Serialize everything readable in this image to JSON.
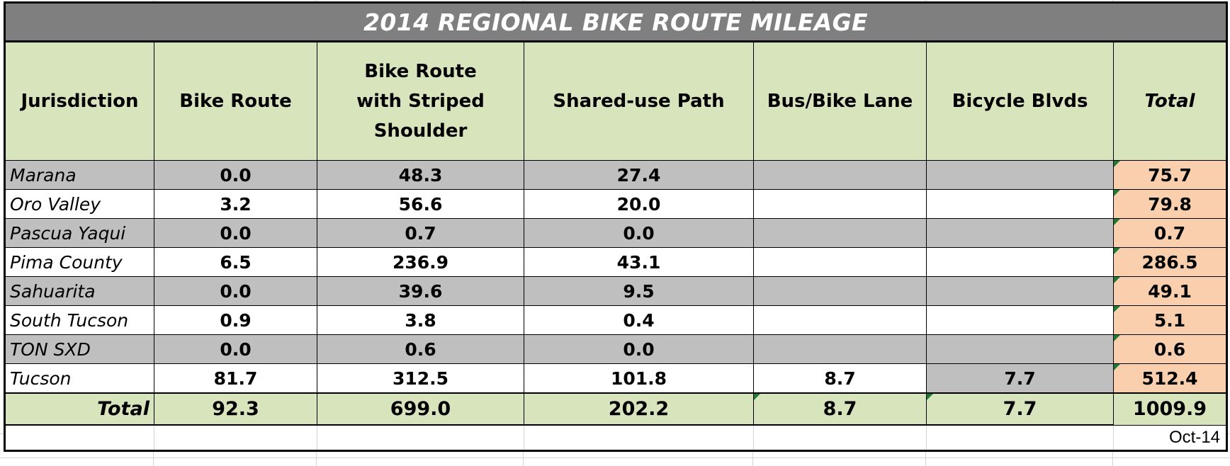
{
  "title": "2014 REGIONAL BIKE ROUTE MILEAGE",
  "headers": [
    "Jurisdiction",
    "Bike Route",
    "Bike Route with Striped Shoulder",
    "Shared-use Path",
    "Bus/Bike Lane",
    "Bicycle Blvds",
    "Total"
  ],
  "rows": [
    {
      "jurisdiction": "Marana",
      "bike_route": "0.0",
      "striped_shoulder": "48.3",
      "shared_use_path": "27.4",
      "bus_bike_lane": "",
      "bicycle_blvds": "",
      "total": "75.7"
    },
    {
      "jurisdiction": "Oro Valley",
      "bike_route": "3.2",
      "striped_shoulder": "56.6",
      "shared_use_path": "20.0",
      "bus_bike_lane": "",
      "bicycle_blvds": "",
      "total": "79.8"
    },
    {
      "jurisdiction": "Pascua Yaqui",
      "bike_route": "0.0",
      "striped_shoulder": "0.7",
      "shared_use_path": "0.0",
      "bus_bike_lane": "",
      "bicycle_blvds": "",
      "total": "0.7"
    },
    {
      "jurisdiction": "Pima County",
      "bike_route": "6.5",
      "striped_shoulder": "236.9",
      "shared_use_path": "43.1",
      "bus_bike_lane": "",
      "bicycle_blvds": "",
      "total": "286.5"
    },
    {
      "jurisdiction": "Sahuarita",
      "bike_route": "0.0",
      "striped_shoulder": "39.6",
      "shared_use_path": "9.5",
      "bus_bike_lane": "",
      "bicycle_blvds": "",
      "total": "49.1"
    },
    {
      "jurisdiction": "South Tucson",
      "bike_route": "0.9",
      "striped_shoulder": "3.8",
      "shared_use_path": "0.4",
      "bus_bike_lane": "",
      "bicycle_blvds": "",
      "total": "5.1"
    },
    {
      "jurisdiction": "TON SXD",
      "bike_route": "0.0",
      "striped_shoulder": "0.6",
      "shared_use_path": "0.0",
      "bus_bike_lane": "",
      "bicycle_blvds": "",
      "total": "0.6"
    },
    {
      "jurisdiction": "Tucson",
      "bike_route": "81.7",
      "striped_shoulder": "312.5",
      "shared_use_path": "101.8",
      "bus_bike_lane": "8.7",
      "bicycle_blvds": "7.7",
      "total": "512.4"
    }
  ],
  "totals": {
    "label": "Total",
    "bike_route": "92.3",
    "striped_shoulder": "699.0",
    "shared_use_path": "202.2",
    "bus_bike_lane": "8.7",
    "bicycle_blvds": "7.7",
    "total": "1009.9"
  },
  "date_note": "Oct-14",
  "colors": {
    "title_bg": "#7f7f7f",
    "header_bg": "#d8e4bc",
    "alt_row_bg": "#bfbfbf",
    "total_col_bg": "#f9cfae",
    "comment_marker": "#1e7b34"
  }
}
